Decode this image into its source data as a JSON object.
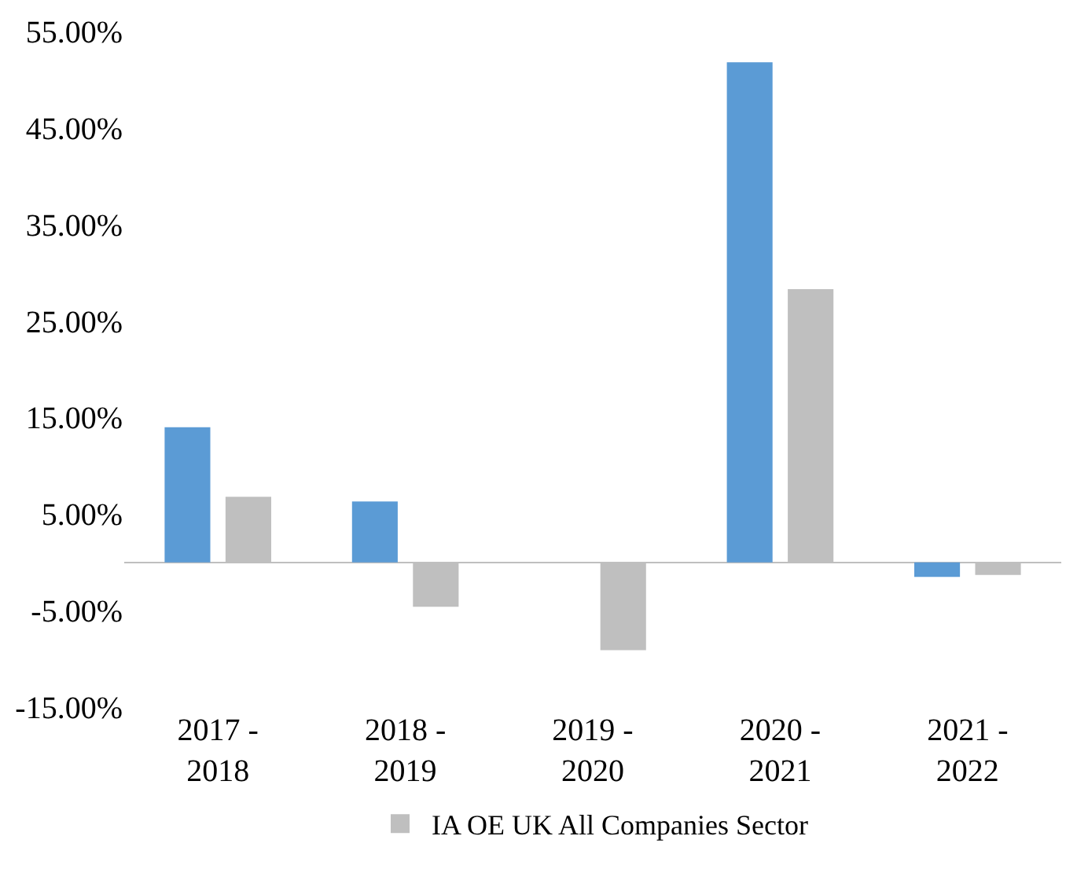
{
  "chart_data": {
    "type": "bar",
    "categories": [
      "2017 -\n2018",
      "2018 -\n2019",
      "2019 -\n2020",
      "2020 -\n2021",
      "2021 -\n2022"
    ],
    "series": [
      {
        "color": "#5b9bd5",
        "values": [
          14.0,
          6.3,
          0,
          51.8,
          -1.5
        ]
      },
      {
        "name": "IA OE UK All Companies Sector",
        "color": "#bfbfbf",
        "values": [
          6.8,
          -4.6,
          -9.1,
          28.3,
          -1.3
        ]
      }
    ],
    "ylim": [
      -15,
      55
    ],
    "yticks": [
      {
        "value": -15,
        "label": "-15.00%"
      },
      {
        "value": -5,
        "label": "-5.00%"
      },
      {
        "value": 5,
        "label": "5.00%"
      },
      {
        "value": 15,
        "label": "15.00%"
      },
      {
        "value": 25,
        "label": "25.00%"
      },
      {
        "value": 35,
        "label": "35.00%"
      },
      {
        "value": 45,
        "label": "45.00%"
      },
      {
        "value": 55,
        "label": "55.00%"
      }
    ],
    "grid": false,
    "legend": "bottom"
  }
}
